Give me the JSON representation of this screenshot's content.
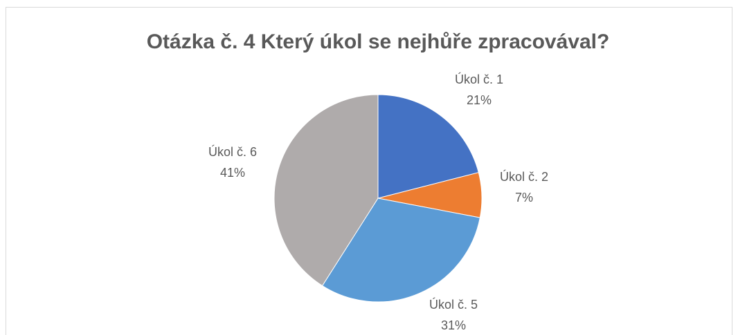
{
  "chart_data": {
    "type": "pie",
    "title": "Otázka č. 4 Který úkol se nejhůře zpracovával?",
    "categories": [
      "Úkol č. 1",
      "Úkol č. 2",
      "Úkol č. 5",
      "Úkol č. 6"
    ],
    "values": [
      21,
      7,
      31,
      41
    ],
    "value_labels": [
      "21%",
      "7%",
      "31%",
      "41%"
    ],
    "colors": [
      "#4472c4",
      "#ed7d31",
      "#5b9bd5",
      "#afabab"
    ]
  }
}
